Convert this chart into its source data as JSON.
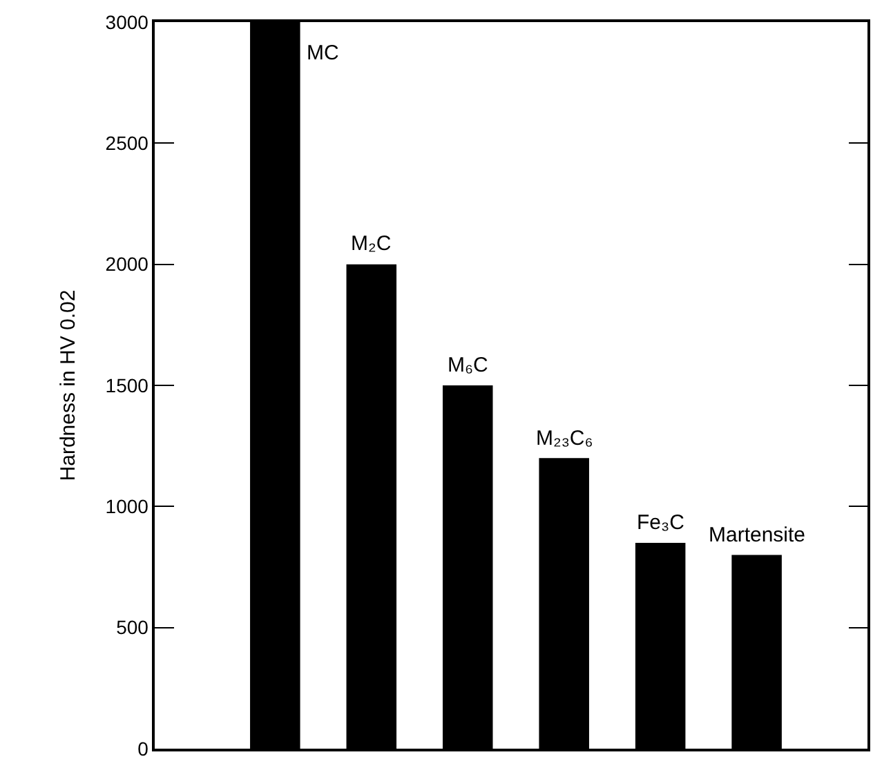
{
  "chart_data": {
    "type": "bar",
    "ylabel": "Hardness in HV 0.02",
    "categories": [
      "MC",
      "M₂C",
      "M₆C",
      "M₂₃C₆",
      "Fe₃C",
      "Martensite"
    ],
    "values": [
      3000,
      2000,
      1500,
      1200,
      850,
      800
    ],
    "color": "#000000",
    "ylim": [
      0,
      3000
    ],
    "yticks": [
      0,
      500,
      1000,
      1500,
      2000,
      2500,
      3000
    ],
    "tick_labels": "y"
  }
}
